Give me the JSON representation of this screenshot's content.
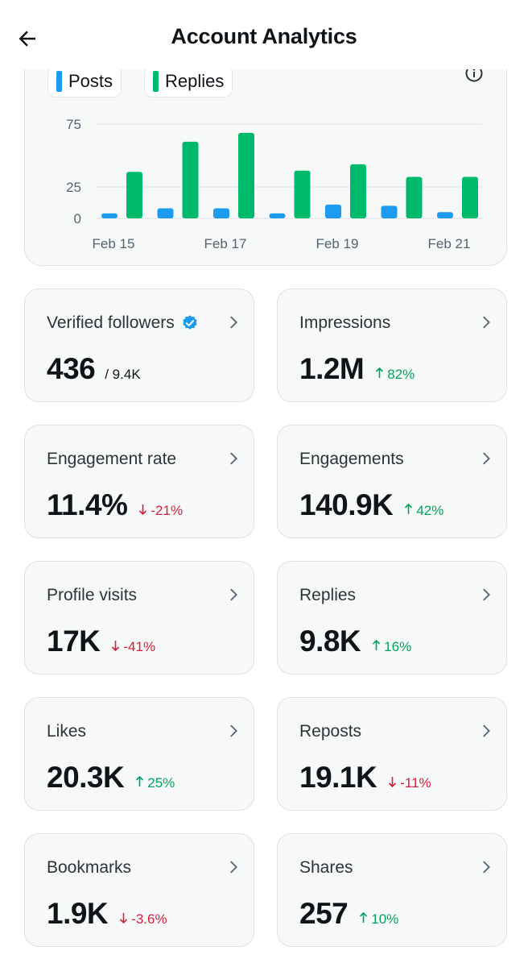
{
  "header": {
    "title": "Account Analytics",
    "back_icon": "back-arrow-icon"
  },
  "chart": {
    "legend": [
      {
        "label": "Posts",
        "color": "#1d9bf0"
      },
      {
        "label": "Replies",
        "color": "#00ba6c"
      }
    ],
    "info_icon": "info-icon"
  },
  "chart_data": {
    "type": "bar",
    "categories": [
      "Feb 15",
      "Feb 16",
      "Feb 17",
      "Feb 18",
      "Feb 19",
      "Feb 20",
      "Feb 21"
    ],
    "x_tick_labels": [
      "Feb 15",
      "Feb 17",
      "Feb 19",
      "Feb 21"
    ],
    "series": [
      {
        "name": "Posts",
        "color": "#1d9bf0",
        "values": [
          4,
          8,
          8,
          4,
          11,
          10,
          5
        ]
      },
      {
        "name": "Replies",
        "color": "#00ba6c",
        "values": [
          37,
          61,
          68,
          38,
          43,
          33,
          33
        ]
      }
    ],
    "y_ticks": [
      0,
      25,
      75
    ],
    "ylim": [
      0,
      75
    ],
    "grid": true,
    "legend_position": "top-left"
  },
  "metrics": [
    {
      "label": "Verified followers",
      "value": "436",
      "sub": "/ 9.4K",
      "delta": "",
      "direction": "",
      "verified": true
    },
    {
      "label": "Impressions",
      "value": "1.2M",
      "sub": "",
      "delta": "82%",
      "direction": "up",
      "verified": false
    },
    {
      "label": "Engagement rate",
      "value": "11.4%",
      "sub": "",
      "delta": "-21%",
      "direction": "down",
      "verified": false
    },
    {
      "label": "Engagements",
      "value": "140.9K",
      "sub": "",
      "delta": "42%",
      "direction": "up",
      "verified": false
    },
    {
      "label": "Profile visits",
      "value": "17K",
      "sub": "",
      "delta": "-41%",
      "direction": "down",
      "verified": false
    },
    {
      "label": "Replies",
      "value": "9.8K",
      "sub": "",
      "delta": "16%",
      "direction": "up",
      "verified": false
    },
    {
      "label": "Likes",
      "value": "20.3K",
      "sub": "",
      "delta": "25%",
      "direction": "up",
      "verified": false
    },
    {
      "label": "Reposts",
      "value": "19.1K",
      "sub": "",
      "delta": "-11%",
      "direction": "down",
      "verified": false
    },
    {
      "label": "Bookmarks",
      "value": "1.9K",
      "sub": "",
      "delta": "-3.6%",
      "direction": "down",
      "verified": false
    },
    {
      "label": "Shares",
      "value": "257",
      "sub": "",
      "delta": "10%",
      "direction": "up",
      "verified": false
    }
  ],
  "colors": {
    "up": "#00a35a",
    "down": "#d4203a",
    "verified_badge": "#1d9bf0"
  }
}
